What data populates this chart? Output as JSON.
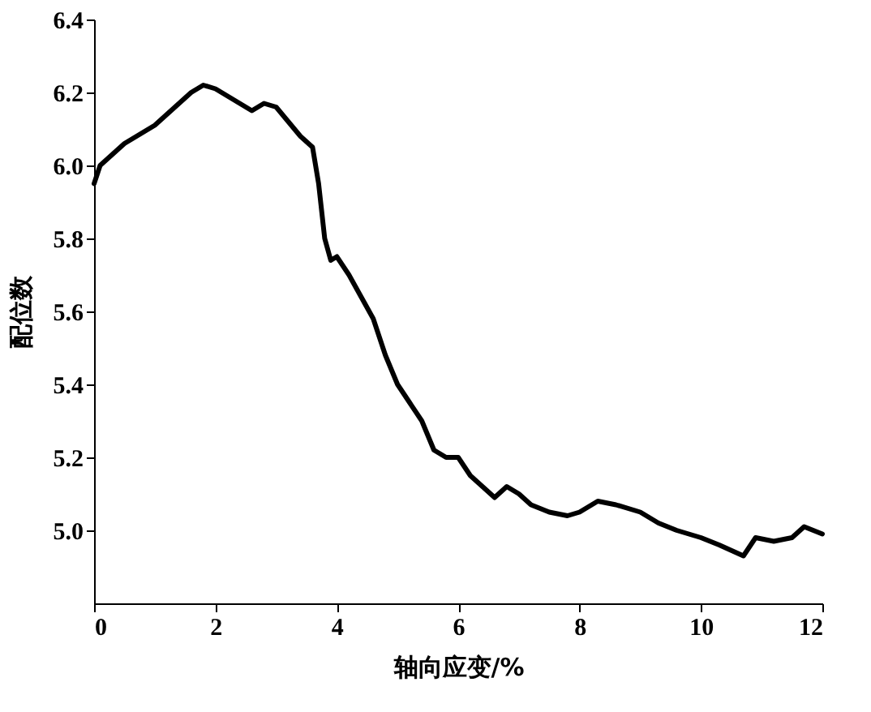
{
  "chart_data": {
    "type": "line",
    "xlabel": "轴向应变/%",
    "ylabel": "配位数",
    "x": [
      0,
      0.1,
      0.3,
      0.5,
      0.8,
      1.0,
      1.2,
      1.4,
      1.6,
      1.8,
      2.0,
      2.2,
      2.4,
      2.6,
      2.8,
      3.0,
      3.2,
      3.4,
      3.6,
      3.7,
      3.8,
      3.9,
      4.0,
      4.2,
      4.4,
      4.6,
      4.8,
      5.0,
      5.2,
      5.4,
      5.6,
      5.8,
      6.0,
      6.2,
      6.4,
      6.6,
      6.8,
      7.0,
      7.2,
      7.5,
      7.8,
      8.0,
      8.3,
      8.6,
      9.0,
      9.3,
      9.6,
      10.0,
      10.3,
      10.7,
      10.9,
      11.2,
      11.5,
      11.7,
      12.0
    ],
    "series": [
      {
        "color": "#000000",
        "values": [
          5.95,
          6.0,
          6.03,
          6.06,
          6.09,
          6.11,
          6.14,
          6.17,
          6.2,
          6.22,
          6.21,
          6.19,
          6.17,
          6.15,
          6.17,
          6.16,
          6.12,
          6.08,
          6.05,
          5.95,
          5.8,
          5.74,
          5.75,
          5.7,
          5.64,
          5.58,
          5.48,
          5.4,
          5.35,
          5.3,
          5.22,
          5.2,
          5.2,
          5.15,
          5.12,
          5.09,
          5.12,
          5.1,
          5.07,
          5.05,
          5.04,
          5.05,
          5.08,
          5.07,
          5.05,
          5.02,
          5.0,
          4.98,
          4.96,
          4.93,
          4.98,
          4.97,
          4.98,
          5.01,
          4.99
        ]
      }
    ],
    "xlim": [
      0,
      12
    ],
    "xticks": [
      0,
      2,
      4,
      6,
      8,
      10,
      12
    ],
    "ylim": [
      4.8,
      6.4
    ],
    "yticks": [
      {
        "value": 5,
        "label": "5.0"
      },
      5.2,
      5.4,
      5.6,
      5.8,
      {
        "value": 6,
        "label": "6.0"
      },
      6.2,
      6.4
    ],
    "grid": false,
    "legend": false,
    "marker": "none",
    "line_style": "solid"
  }
}
